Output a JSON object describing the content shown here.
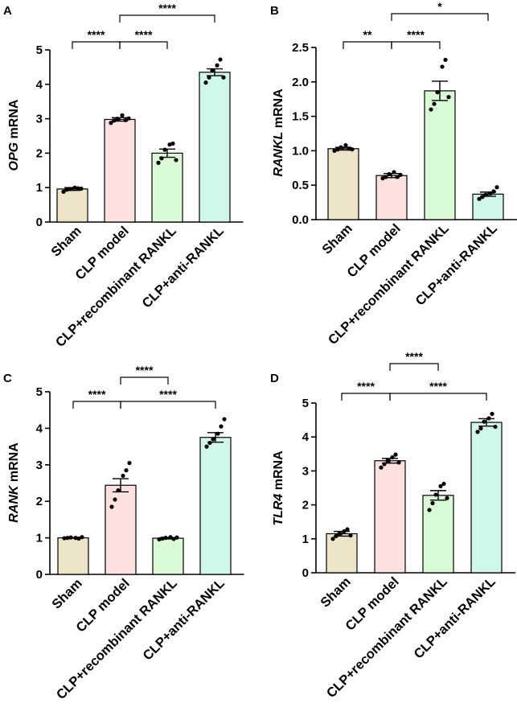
{
  "colors": {
    "sham": "#ece4c6",
    "clp_model": "#fde0e0",
    "clp_recombinant": "#d9fbd5",
    "clp_anti": "#cff8ea",
    "axis": "#000000"
  },
  "chart_data": [
    {
      "panel": "A",
      "type": "bar",
      "ylabel_gene": "OPG",
      "ylabel_unit": " mRNA",
      "ylim": [
        0,
        5
      ],
      "yticks": [
        "0",
        "1",
        "2",
        "3",
        "4",
        "5"
      ],
      "categories": [
        "Sham",
        "CLP model",
        "CLP+recombinant RANKL",
        "CLP+anti-RANKL"
      ],
      "values": [
        0.96,
        2.98,
        2.0,
        4.35
      ],
      "errors": [
        0.04,
        0.05,
        0.12,
        0.1
      ],
      "points": [
        [
          0.88,
          0.94,
          0.96,
          1.0,
          0.98,
          0.97
        ],
        [
          2.88,
          2.95,
          3.0,
          3.1,
          2.96,
          3.01
        ],
        [
          1.72,
          1.85,
          2.1,
          2.25,
          2.28,
          1.8
        ],
        [
          4.05,
          4.2,
          4.4,
          4.55,
          4.72,
          4.2
        ]
      ],
      "significance": [
        {
          "from": 0,
          "to": 1,
          "label": "****"
        },
        {
          "from": 1,
          "to": 2,
          "label": "****"
        },
        {
          "from": 1,
          "to": 3,
          "label": "****"
        }
      ]
    },
    {
      "panel": "B",
      "type": "bar",
      "ylabel_gene": "RANKL",
      "ylabel_unit": " mRNA",
      "ylim": [
        0,
        2.5
      ],
      "yticks": [
        "0.0",
        "0.5",
        "1.0",
        "1.5",
        "2.0",
        "2.5"
      ],
      "categories": [
        "Sham",
        "CLP model",
        "CLP+recombinant RANKL",
        "CLP+anti-RANKL"
      ],
      "values": [
        1.03,
        0.64,
        1.87,
        0.37
      ],
      "errors": [
        0.02,
        0.03,
        0.14,
        0.03
      ],
      "points": [
        [
          1.0,
          1.02,
          1.05,
          1.08,
          1.03,
          1.02
        ],
        [
          0.6,
          0.62,
          0.66,
          0.69,
          0.62,
          0.65
        ],
        [
          1.6,
          1.68,
          1.85,
          2.22,
          2.32,
          1.78
        ],
        [
          0.3,
          0.33,
          0.36,
          0.38,
          0.41,
          0.47
        ]
      ],
      "significance": [
        {
          "from": 0,
          "to": 1,
          "label": "**"
        },
        {
          "from": 1,
          "to": 2,
          "label": "****"
        },
        {
          "from": 1,
          "to": 3,
          "label": "*"
        }
      ]
    },
    {
      "panel": "C",
      "type": "bar",
      "ylabel_gene": "RANK",
      "ylabel_unit": " mRNA",
      "ylim": [
        0,
        5
      ],
      "yticks": [
        "0",
        "1",
        "2",
        "3",
        "4",
        "5"
      ],
      "categories": [
        "Sham",
        "CLP model",
        "CLP+recombinant RANKL",
        "CLP+anti-RANKL"
      ],
      "values": [
        1.0,
        2.44,
        0.99,
        3.75
      ],
      "errors": [
        0.01,
        0.18,
        0.02,
        0.13
      ],
      "points": [
        [
          0.99,
          1.0,
          1.01,
          1.0,
          0.98,
          1.02
        ],
        [
          1.85,
          2.05,
          2.3,
          2.7,
          2.85,
          3.05
        ],
        [
          0.96,
          0.98,
          1.0,
          1.02,
          0.97,
          1.01
        ],
        [
          3.5,
          3.6,
          3.7,
          3.85,
          4.05,
          4.25
        ]
      ],
      "significance": [
        {
          "from": 0,
          "to": 1,
          "label": "****"
        },
        {
          "from": 1,
          "to": 2,
          "label": "****"
        },
        {
          "from": 1,
          "to": 3,
          "label": "****"
        }
      ]
    },
    {
      "panel": "D",
      "type": "bar",
      "ylabel_gene": "TLR4",
      "ylabel_unit": " mRNA",
      "ylim": [
        0,
        5
      ],
      "yticks": [
        "0",
        "1",
        "2",
        "3",
        "4",
        "5"
      ],
      "categories": [
        "Sham",
        "CLP model",
        "CLP+recombinant RANKL",
        "CLP+anti-RANKL"
      ],
      "values": [
        1.15,
        3.3,
        2.28,
        4.43
      ],
      "errors": [
        0.07,
        0.07,
        0.14,
        0.11
      ],
      "points": [
        [
          1.0,
          1.08,
          1.15,
          1.22,
          1.28,
          1.1
        ],
        [
          3.1,
          3.2,
          3.3,
          3.4,
          3.48,
          3.25
        ],
        [
          1.85,
          2.05,
          2.3,
          2.55,
          2.62,
          2.2
        ],
        [
          4.15,
          4.25,
          4.45,
          4.55,
          4.68,
          4.3
        ]
      ],
      "significance": [
        {
          "from": 0,
          "to": 1,
          "label": "****"
        },
        {
          "from": 1,
          "to": 2,
          "label": "****"
        },
        {
          "from": 1,
          "to": 3,
          "label": "****"
        }
      ]
    }
  ]
}
